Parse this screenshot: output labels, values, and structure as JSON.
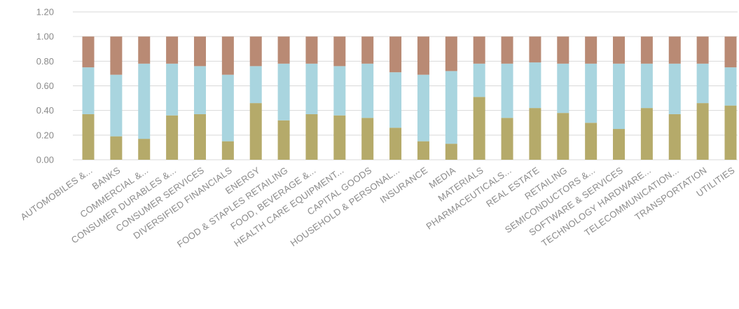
{
  "chart_data": {
    "type": "bar",
    "stacked": true,
    "title": "",
    "xlabel": "",
    "ylabel": "",
    "ylim": [
      0,
      1.2
    ],
    "y_ticks": [
      "0.00",
      "0.20",
      "0.40",
      "0.60",
      "0.80",
      "1.00",
      "1.20"
    ],
    "grid": true,
    "legend": "none",
    "categories": [
      "AUTOMOBILES &...",
      "BANKS",
      "COMMERCIAL &...",
      "CONSUMER DURABLES &...",
      "CONSUMER SERVICES",
      "DIVERSIFIED FINANCIALS",
      "ENERGY",
      "FOOD & STAPLES RETAILING",
      "FOOD, BEVERAGE &...",
      "HEALTH CARE EQUIPMENT...",
      "CAPITAL GOODS",
      "HOUSEHOLD & PERSONAL...",
      "INSURANCE",
      "MEDIA",
      "MATERIALS",
      "PHARMACEUTICALS...",
      "REAL ESTATE",
      "RETAILING",
      "SEMICONDUCTORS &...",
      "SOFTWARE & SERVICES",
      "TECHNOLOGY HARDWARE...",
      "TELECOMMUNICATION...",
      "TRANSPORTATION",
      "UTILITIES"
    ],
    "series": [
      {
        "color": "#b5aa6a",
        "values": [
          0.37,
          0.19,
          0.17,
          0.36,
          0.37,
          0.15,
          0.46,
          0.32,
          0.37,
          0.36,
          0.34,
          0.26,
          0.15,
          0.13,
          0.51,
          0.34,
          0.42,
          0.38,
          0.3,
          0.25,
          0.42,
          0.37,
          0.46,
          0.44
        ]
      },
      {
        "color": "#a9d5df",
        "values": [
          0.38,
          0.5,
          0.61,
          0.42,
          0.39,
          0.54,
          0.3,
          0.46,
          0.41,
          0.4,
          0.44,
          0.45,
          0.54,
          0.59,
          0.27,
          0.44,
          0.37,
          0.4,
          0.48,
          0.53,
          0.36,
          0.41,
          0.32,
          0.31
        ]
      },
      {
        "color": "#b98a74",
        "values": [
          0.25,
          0.31,
          0.22,
          0.22,
          0.24,
          0.31,
          0.24,
          0.22,
          0.22,
          0.24,
          0.22,
          0.29,
          0.31,
          0.28,
          0.22,
          0.22,
          0.21,
          0.22,
          0.22,
          0.22,
          0.22,
          0.22,
          0.22,
          0.25
        ]
      }
    ]
  }
}
